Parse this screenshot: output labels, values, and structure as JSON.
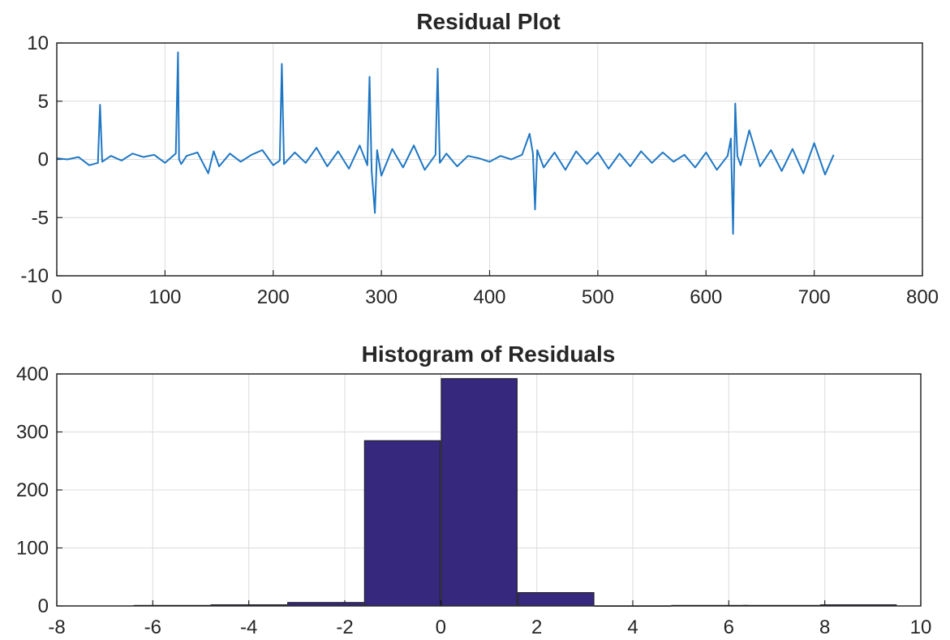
{
  "chart_data": [
    {
      "type": "line",
      "title": "Residual Plot",
      "xlim": [
        0,
        800
      ],
      "ylim": [
        -10,
        10
      ],
      "xticks": [
        0,
        100,
        200,
        300,
        400,
        500,
        600,
        700,
        800
      ],
      "yticks": [
        -10,
        -5,
        0,
        5,
        10
      ],
      "grid": true,
      "line_color": "#1f77c4",
      "x": [
        0,
        10,
        20,
        30,
        38,
        40,
        42,
        50,
        60,
        70,
        80,
        90,
        100,
        110,
        112,
        113,
        115,
        120,
        130,
        140,
        145,
        150,
        160,
        170,
        180,
        190,
        200,
        206,
        208,
        210,
        220,
        230,
        240,
        250,
        260,
        270,
        280,
        287,
        289,
        291,
        294,
        296,
        300,
        310,
        320,
        330,
        340,
        350,
        352,
        354,
        360,
        370,
        380,
        390,
        400,
        410,
        420,
        430,
        437,
        440,
        442,
        444,
        450,
        460,
        470,
        480,
        490,
        500,
        510,
        520,
        530,
        540,
        550,
        560,
        570,
        580,
        590,
        600,
        610,
        620,
        623,
        625,
        627,
        629,
        632,
        640,
        650,
        660,
        670,
        680,
        690,
        700,
        710,
        718
      ],
      "y": [
        0.1,
        0.0,
        0.2,
        -0.5,
        -0.3,
        4.7,
        -0.2,
        0.3,
        -0.1,
        0.5,
        0.2,
        0.4,
        -0.3,
        0.5,
        9.2,
        0.0,
        -0.4,
        0.3,
        0.6,
        -1.2,
        0.7,
        -0.6,
        0.5,
        -0.2,
        0.4,
        0.8,
        -0.5,
        -0.1,
        8.2,
        -0.4,
        0.6,
        -0.3,
        1.0,
        -0.6,
        0.7,
        -0.8,
        1.2,
        -0.5,
        7.1,
        -1.0,
        -4.6,
        0.8,
        -1.4,
        0.9,
        -0.7,
        1.2,
        -0.9,
        0.4,
        7.8,
        -0.3,
        0.5,
        -0.6,
        0.3,
        0.1,
        -0.2,
        0.3,
        0.0,
        0.4,
        2.2,
        0.5,
        -4.3,
        0.8,
        -0.7,
        0.6,
        -0.9,
        0.7,
        -0.4,
        0.6,
        -0.8,
        0.5,
        -0.6,
        0.7,
        -0.3,
        0.6,
        -0.2,
        0.4,
        -0.7,
        0.6,
        -0.9,
        0.3,
        1.8,
        -6.4,
        4.8,
        0.3,
        -0.5,
        2.5,
        -0.6,
        0.8,
        -1.0,
        0.9,
        -1.2,
        1.4,
        -1.3,
        0.4
      ]
    },
    {
      "type": "bar",
      "title": "Histogram of Residuals",
      "xlim": [
        -8,
        10
      ],
      "ylim": [
        0,
        400
      ],
      "xticks": [
        -8,
        -6,
        -4,
        -2,
        0,
        2,
        4,
        6,
        8,
        10
      ],
      "yticks": [
        0,
        100,
        200,
        300,
        400
      ],
      "grid": true,
      "bar_color": "#35287d",
      "bin_width": 1.58,
      "bin_centers": [
        -5.6,
        -4.0,
        -2.4,
        -0.8,
        0.8,
        2.4,
        4.0,
        5.6,
        7.1,
        8.7
      ],
      "values": [
        1,
        2,
        6,
        285,
        392,
        23,
        0,
        1,
        1,
        2
      ]
    }
  ]
}
